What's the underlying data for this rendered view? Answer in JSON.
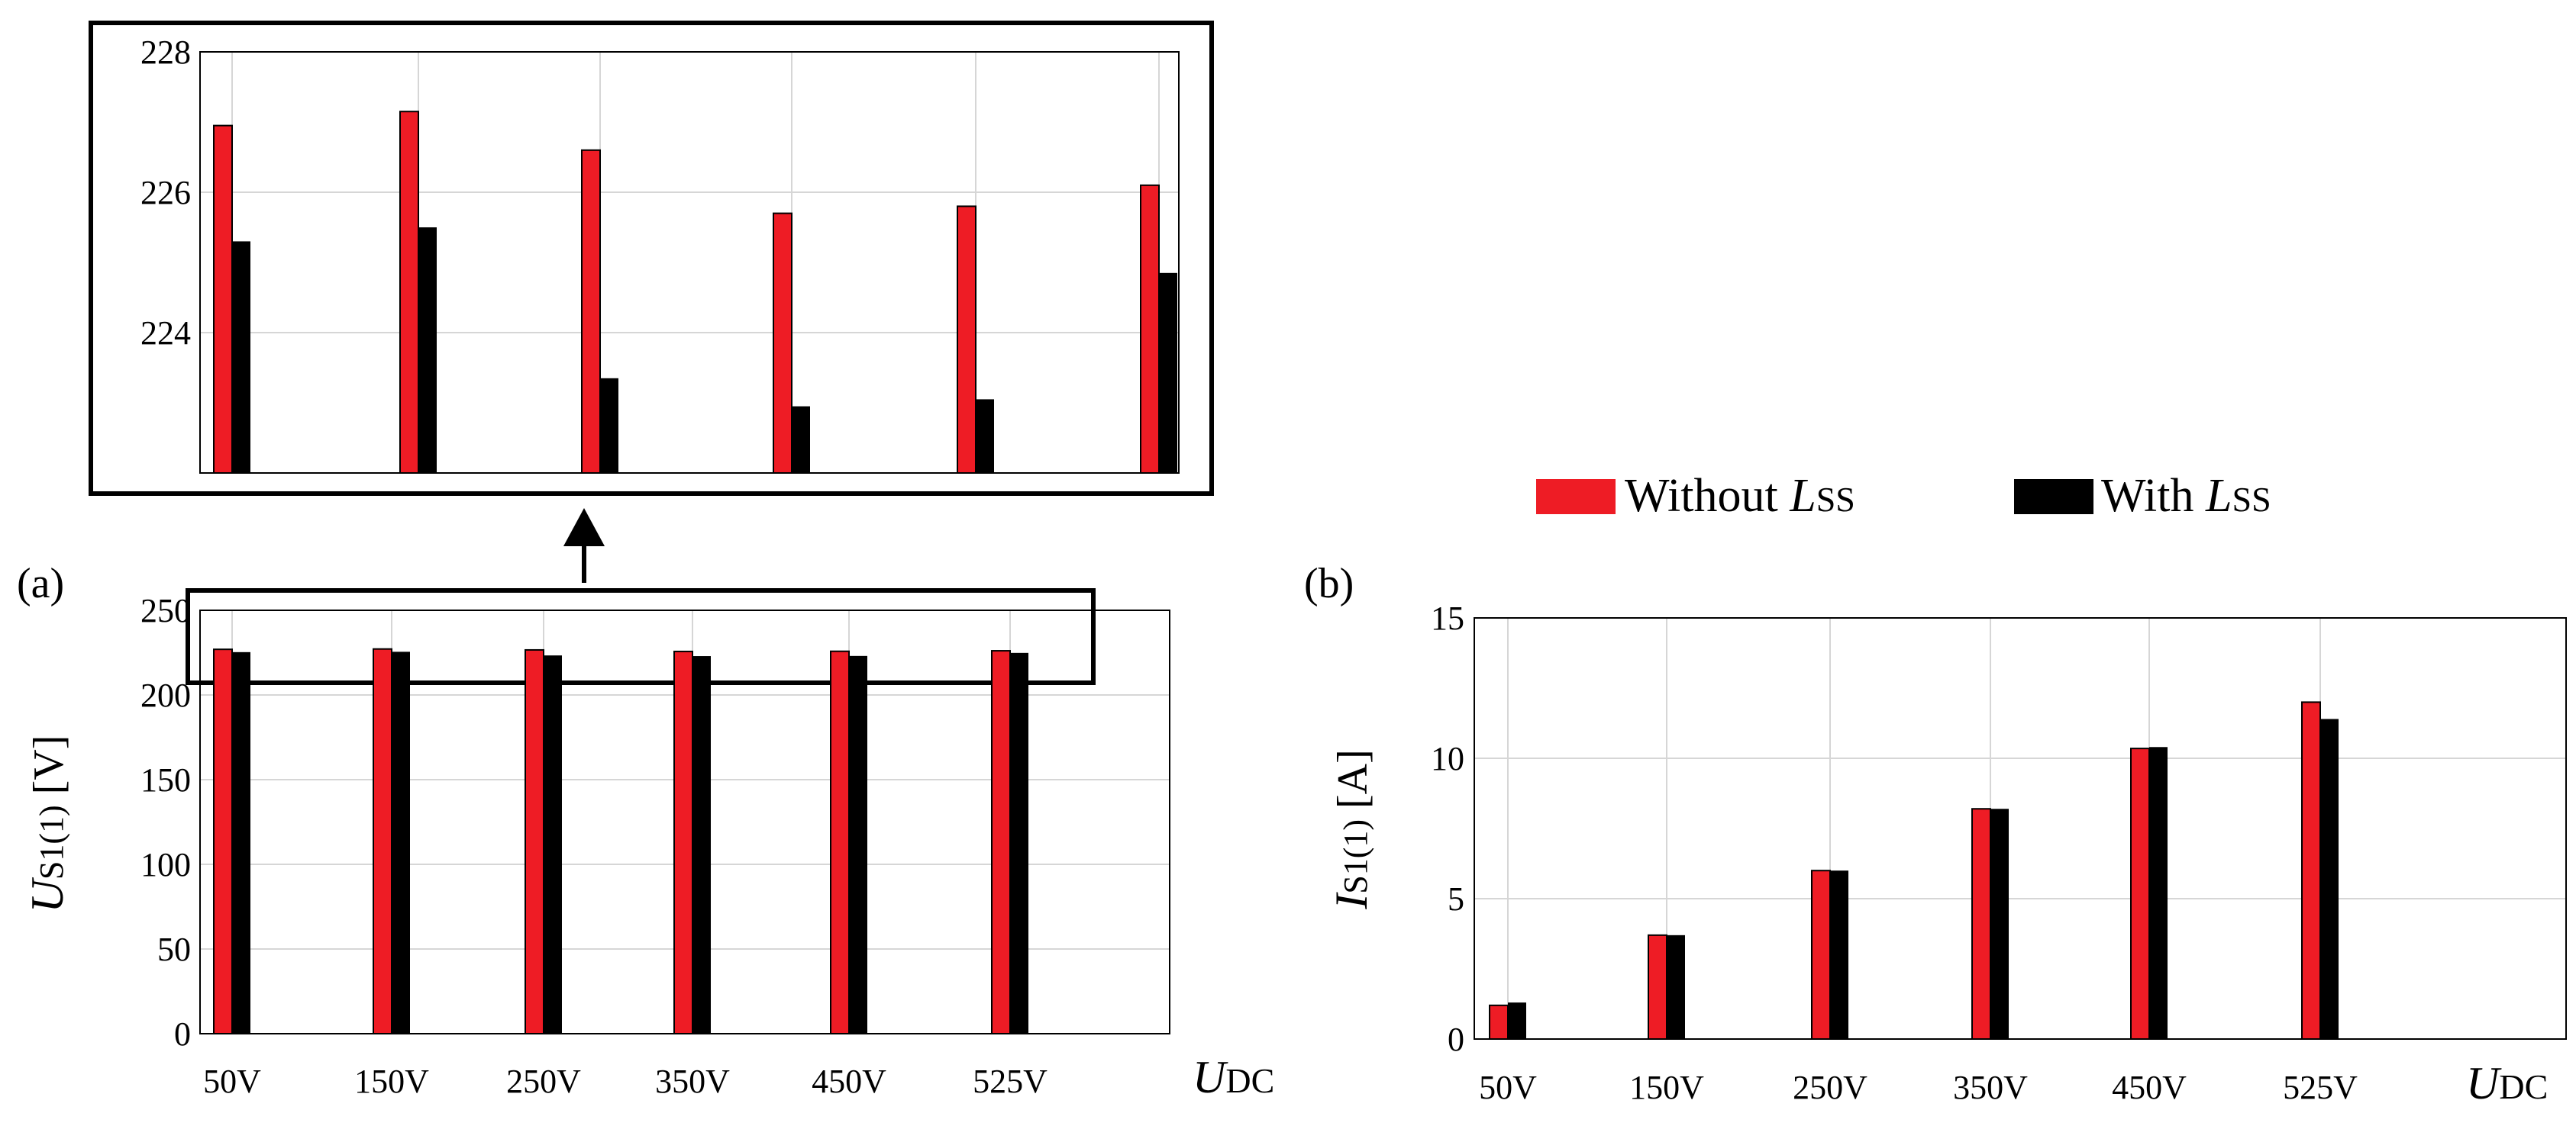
{
  "chart_data": [
    {
      "id": "inset",
      "type": "bar",
      "title": "",
      "categories": [
        "50V",
        "150V",
        "250V",
        "350V",
        "450V",
        "525V"
      ],
      "ylim": [
        222,
        228
      ],
      "yticks": [
        224,
        226,
        228
      ],
      "ytick_labels": [
        "224",
        "226",
        "228"
      ],
      "grid": true,
      "series": [
        {
          "name": "Without Lss",
          "color": "#ee1c25",
          "values": [
            226.95,
            227.15,
            226.6,
            225.7,
            225.8,
            226.1
          ]
        },
        {
          "name": "With Lss",
          "color": "#000000",
          "values": [
            225.3,
            225.5,
            223.35,
            222.95,
            223.05,
            224.85
          ]
        }
      ]
    },
    {
      "id": "a",
      "type": "bar",
      "panel_label": "(a)",
      "categories": [
        "50V",
        "150V",
        "250V",
        "350V",
        "450V",
        "525V"
      ],
      "xlabel": {
        "main": "U",
        "sub": "DC"
      },
      "ylabel": {
        "main": "U",
        "sub": "S1(1)",
        "unit": " [V]"
      },
      "ylim": [
        0,
        250
      ],
      "yticks": [
        0,
        50,
        100,
        150,
        200,
        250
      ],
      "ytick_labels": [
        "0",
        "50",
        "100",
        "150",
        "200",
        "250"
      ],
      "grid": true,
      "series": [
        {
          "name": "Without Lss",
          "color": "#ee1c25",
          "values": [
            226.95,
            227.15,
            226.6,
            225.7,
            225.8,
            226.1
          ]
        },
        {
          "name": "With Lss",
          "color": "#000000",
          "values": [
            225.3,
            225.5,
            223.35,
            222.95,
            223.05,
            224.85
          ]
        }
      ]
    },
    {
      "id": "b",
      "type": "bar",
      "panel_label": "(b)",
      "categories": [
        "50V",
        "150V",
        "250V",
        "350V",
        "450V",
        "525V"
      ],
      "xlabel": {
        "main": "U",
        "sub": "DC"
      },
      "ylabel": {
        "main": "I",
        "sub": "S1(1)",
        "unit": " [A]"
      },
      "ylim": [
        0,
        15
      ],
      "yticks": [
        0,
        5,
        10,
        15
      ],
      "ytick_labels": [
        "0",
        "5",
        "10",
        "15"
      ],
      "grid": true,
      "series": [
        {
          "name": "Without Lss",
          "color": "#ee1c25",
          "values": [
            1.2,
            3.7,
            6.0,
            8.2,
            10.35,
            12.0
          ]
        },
        {
          "name": "With Lss",
          "color": "#000000",
          "values": [
            1.3,
            3.7,
            6.0,
            8.2,
            10.4,
            11.4
          ]
        }
      ]
    }
  ],
  "legend": {
    "items": [
      {
        "text": "Without ",
        "sym": "L",
        "sub": "SS",
        "color": "#ee1c25"
      },
      {
        "text": "With ",
        "sym": "L",
        "sub": "SS",
        "color": "#000000"
      }
    ]
  }
}
